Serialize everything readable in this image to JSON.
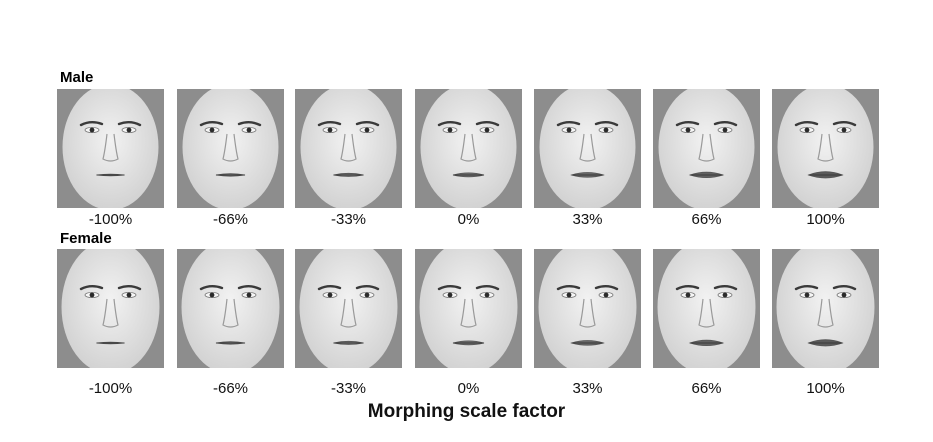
{
  "figure": {
    "rows": [
      {
        "label": "Male",
        "sex": "male",
        "panels": [
          {
            "label": "-100%",
            "morph": -1.0
          },
          {
            "label": "-66%",
            "morph": -0.66
          },
          {
            "label": "-33%",
            "morph": -0.33
          },
          {
            "label": "0%",
            "morph": 0.0
          },
          {
            "label": "33%",
            "morph": 0.33
          },
          {
            "label": "66%",
            "morph": 0.66
          },
          {
            "label": "100%",
            "morph": 1.0
          }
        ]
      },
      {
        "label": "Female",
        "sex": "female",
        "panels": [
          {
            "label": "-100%",
            "morph": -1.0
          },
          {
            "label": "-66%",
            "morph": -0.66
          },
          {
            "label": "-33%",
            "morph": -0.33
          },
          {
            "label": "0%",
            "morph": 0.0
          },
          {
            "label": "33%",
            "morph": 0.33
          },
          {
            "label": "66%",
            "morph": 0.66
          },
          {
            "label": "100%",
            "morph": 1.0
          }
        ]
      }
    ],
    "axis_title": "Morphing scale factor",
    "colors": {
      "tile_background": "#8d8d8d",
      "face": "#e6e6e6",
      "feature": "#3a3a3a"
    }
  }
}
